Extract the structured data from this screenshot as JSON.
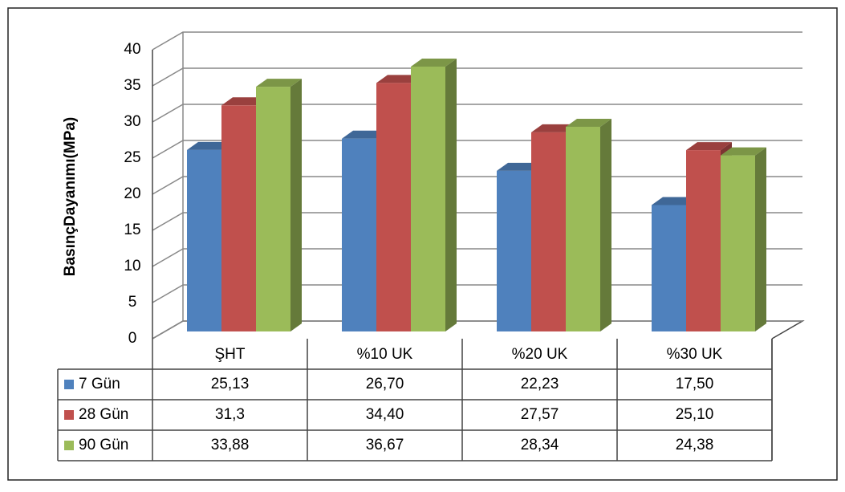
{
  "chart_data": {
    "type": "bar3d",
    "y_label": "BasınçDayanımı(MPa)",
    "categories": [
      "ŞHT",
      "%10  UK",
      "%20  UK",
      "%30  UK"
    ],
    "series": [
      {
        "name": "7 Gün",
        "color": "#4f81bd",
        "values": [
          25.13,
          26.7,
          22.23,
          17.5
        ],
        "value_labels": [
          "25,13",
          "26,70",
          "22,23",
          "17,50"
        ]
      },
      {
        "name": "28 Gün",
        "color": "#c0504d",
        "values": [
          31.3,
          34.4,
          27.57,
          25.1
        ],
        "value_labels": [
          "31,3",
          "34,40",
          "27,57",
          "25,10"
        ]
      },
      {
        "name": "90 Gün",
        "color": "#9bbb59",
        "values": [
          33.88,
          36.67,
          28.34,
          24.38
        ],
        "value_labels": [
          "33,88",
          "36,67",
          "28,34",
          "24,38"
        ]
      }
    ],
    "ylim": [
      0,
      40
    ],
    "yticks": [
      0,
      5,
      10,
      15,
      20,
      25,
      30,
      35,
      40
    ],
    "grid": true,
    "data_table": true
  }
}
